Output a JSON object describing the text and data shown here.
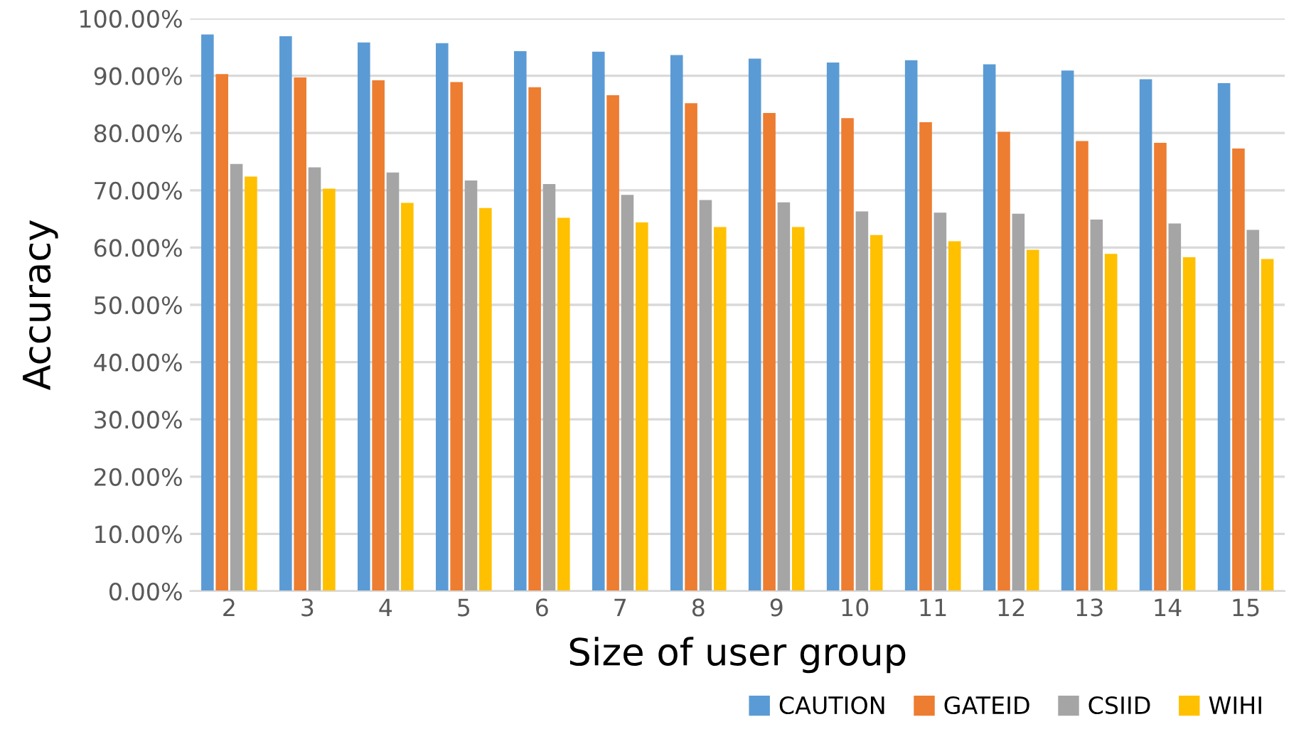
{
  "chart_data": {
    "type": "bar",
    "xlabel": "Size of user group",
    "ylabel": "Accuracy",
    "categories": [
      "2",
      "3",
      "4",
      "5",
      "6",
      "7",
      "8",
      "9",
      "10",
      "11",
      "12",
      "13",
      "14",
      "15"
    ],
    "series": [
      {
        "name": "CAUTION",
        "color": "#5b9bd5",
        "values": [
          97.2,
          96.9,
          95.8,
          95.7,
          94.3,
          94.2,
          93.6,
          93.0,
          92.3,
          92.7,
          92.0,
          90.9,
          89.4,
          88.7
        ]
      },
      {
        "name": "GATEID",
        "color": "#ed7d31",
        "values": [
          90.3,
          89.7,
          89.2,
          88.9,
          88.0,
          86.6,
          85.2,
          83.5,
          82.6,
          81.9,
          80.2,
          78.6,
          78.3,
          77.3
        ]
      },
      {
        "name": "CSIID",
        "color": "#a5a5a5",
        "values": [
          74.6,
          74.0,
          73.1,
          71.7,
          71.1,
          69.2,
          68.3,
          67.9,
          66.3,
          66.1,
          65.9,
          64.9,
          64.2,
          63.1
        ]
      },
      {
        "name": "WIHI",
        "color": "#ffc000",
        "values": [
          72.4,
          70.3,
          67.8,
          66.9,
          65.2,
          64.4,
          63.6,
          63.6,
          62.2,
          61.1,
          59.6,
          58.9,
          58.3,
          58.0
        ]
      }
    ],
    "ylim": [
      0,
      100
    ],
    "yticks": [
      {
        "value": 0,
        "label": "0.00%"
      },
      {
        "value": 10,
        "label": "10.00%"
      },
      {
        "value": 20,
        "label": "20.00%"
      },
      {
        "value": 30,
        "label": "30.00%"
      },
      {
        "value": 40,
        "label": "40.00%"
      },
      {
        "value": 50,
        "label": "50.00%"
      },
      {
        "value": 60,
        "label": "60.00%"
      },
      {
        "value": 70,
        "label": "70.00%"
      },
      {
        "value": 80,
        "label": "80.00%"
      },
      {
        "value": 90,
        "label": "90.00%"
      },
      {
        "value": 100,
        "label": "100.00%"
      }
    ],
    "grid": "y",
    "legend": "bottom right"
  }
}
